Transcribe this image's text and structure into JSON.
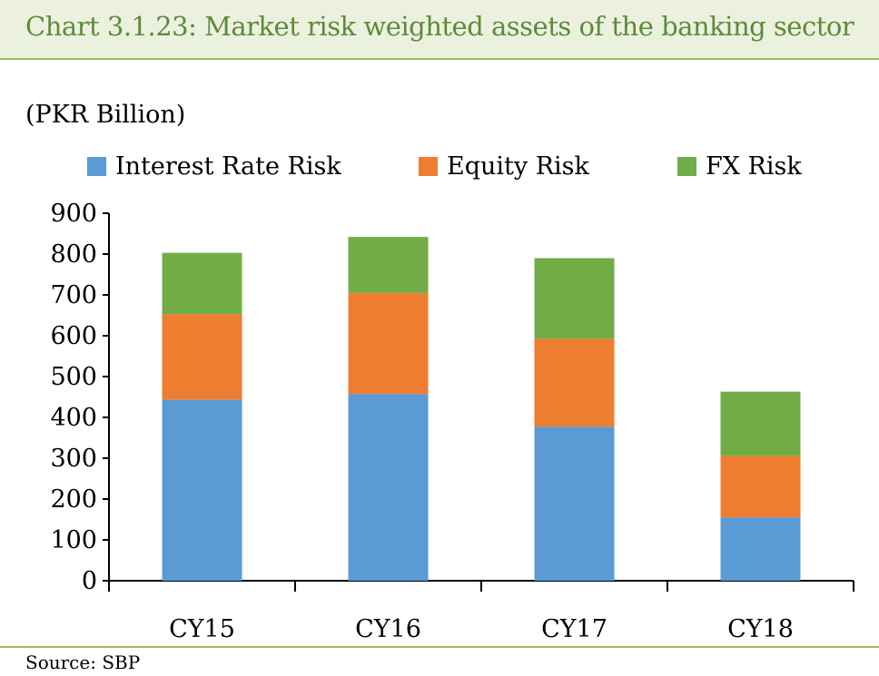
{
  "header": {
    "title": "Chart 3.1.23: Market risk weighted assets of the banking sector"
  },
  "footer": {
    "source": "Source:  SBP"
  },
  "colors": {
    "interest_rate_risk": "#5B9BD5",
    "equity_risk": "#ED7D31",
    "fx_risk": "#70AD47",
    "header_bg": "#EBF1DE",
    "title_text": "#5E8A3A",
    "rule": "#9BBB59"
  },
  "chart_data": {
    "type": "bar",
    "stacked": true,
    "ylabel": "(PKR Billion)",
    "categories": [
      "CY15",
      "CY16",
      "CY17",
      "CY18"
    ],
    "series": [
      {
        "name": "Interest Rate Risk",
        "values": [
          443,
          457,
          377,
          155
        ]
      },
      {
        "name": "Equity Risk",
        "values": [
          210,
          248,
          216,
          151
        ]
      },
      {
        "name": "FX Risk",
        "values": [
          150,
          137,
          197,
          157
        ]
      }
    ],
    "ylim": [
      0,
      900
    ],
    "yticks": [
      "0",
      "100",
      "200",
      "300",
      "400",
      "500",
      "600",
      "700",
      "800",
      "900"
    ],
    "legend_position": "top",
    "grid": false
  }
}
